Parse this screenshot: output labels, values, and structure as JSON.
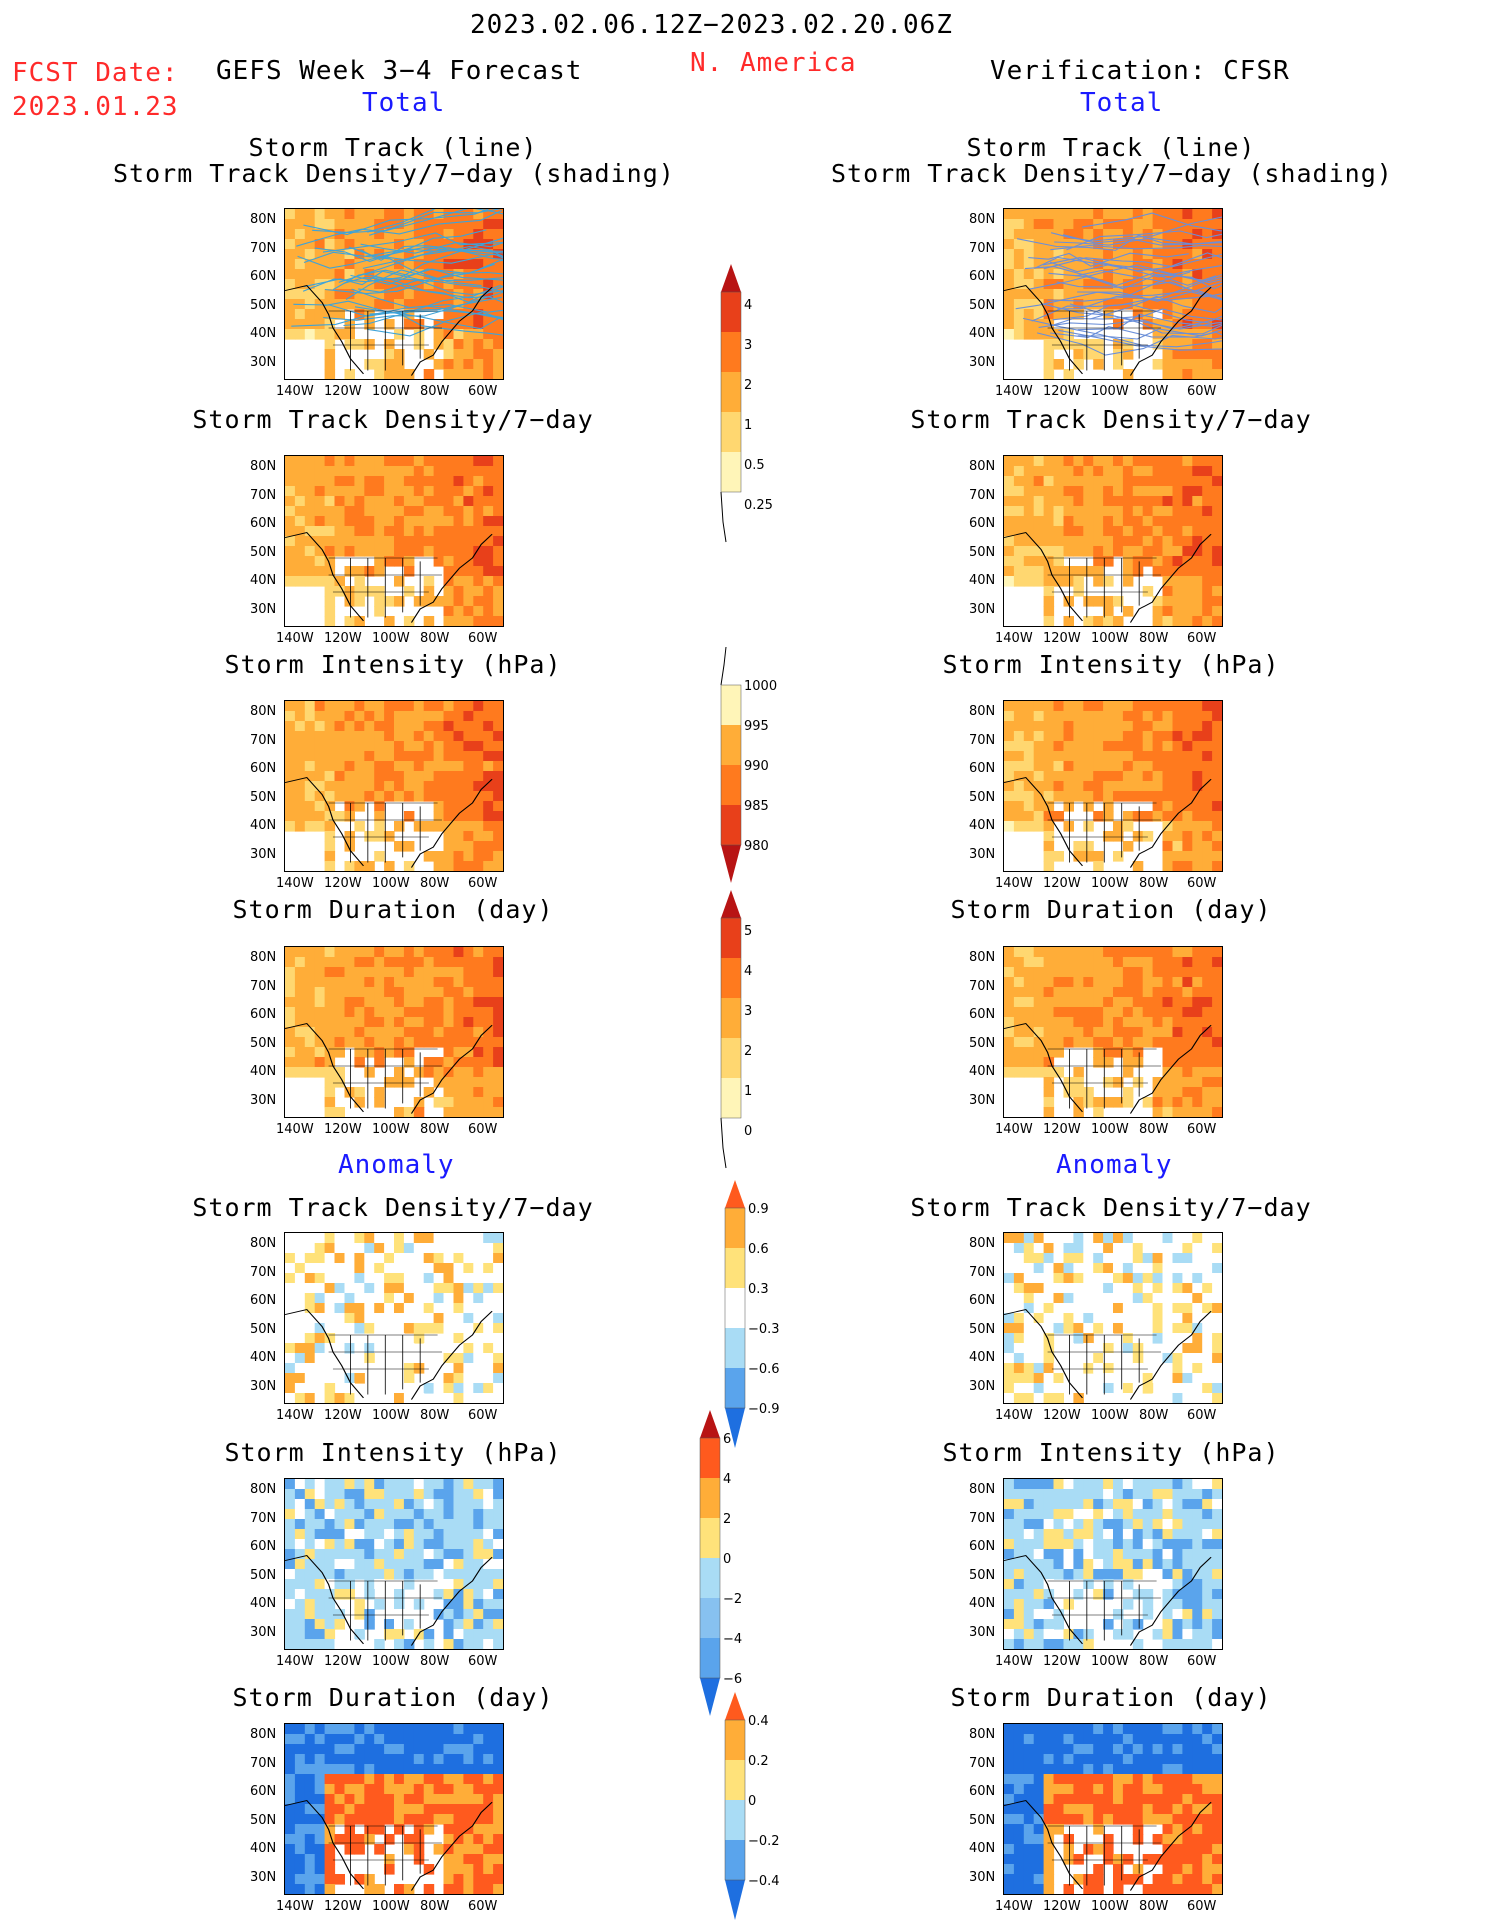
{
  "header": {
    "date_range": "2023.02.06.12Z−2023.02.20.06Z",
    "region": "N. America",
    "fcst_label": "FCST Date:",
    "fcst_date": "2023.01.23",
    "forecast_title": "GEFS Week 3−4 Forecast",
    "verification_title": "Verification: CFSR",
    "total_left": "Total",
    "total_right": "Total",
    "anomaly_left": "Anomaly",
    "anomaly_right": "Anomaly"
  },
  "axis": {
    "lat_labels": [
      "80N",
      "70N",
      "60N",
      "50N",
      "40N",
      "30N"
    ],
    "lon_labels": [
      "140W",
      "120W",
      "100W",
      "80W",
      "60W"
    ]
  },
  "panels": {
    "track_title_1": "Storm Track (line)",
    "track_title_2": "Storm Track Density/7−day (shading)",
    "density": "Storm Track Density/7−day",
    "intensity": "Storm Intensity (hPa)",
    "duration": "Storm Duration (day)"
  },
  "colorbars": {
    "density_total": [
      "4",
      "3",
      "2",
      "1",
      "0.5",
      "0.25"
    ],
    "intensity_total": [
      "1000",
      "995",
      "990",
      "985",
      "980"
    ],
    "duration_total": [
      "5",
      "4",
      "3",
      "2",
      "1",
      "0"
    ],
    "density_anom": [
      "0.9",
      "0.6",
      "0.3",
      "−0.3",
      "−0.6",
      "−0.9"
    ],
    "intensity_anom": [
      "6",
      "4",
      "2",
      "0",
      "−2",
      "−4",
      "−6"
    ],
    "duration_anom": [
      "0.4",
      "0.2",
      "0",
      "−0.2",
      "−0.4"
    ]
  },
  "colors": {
    "header_red": "#ff2a2a",
    "label_blue": "#1a1aff",
    "warm_scale": [
      "#fff5b8",
      "#ffd770",
      "#ffad38",
      "#ff7a1e",
      "#e8401a",
      "#b81414"
    ],
    "anom_scale": [
      "#1e6fe0",
      "#5aa4ec",
      "#a9dcf5",
      "#ffffff",
      "#ffe27a",
      "#ffad38",
      "#ff5a1e"
    ]
  }
}
